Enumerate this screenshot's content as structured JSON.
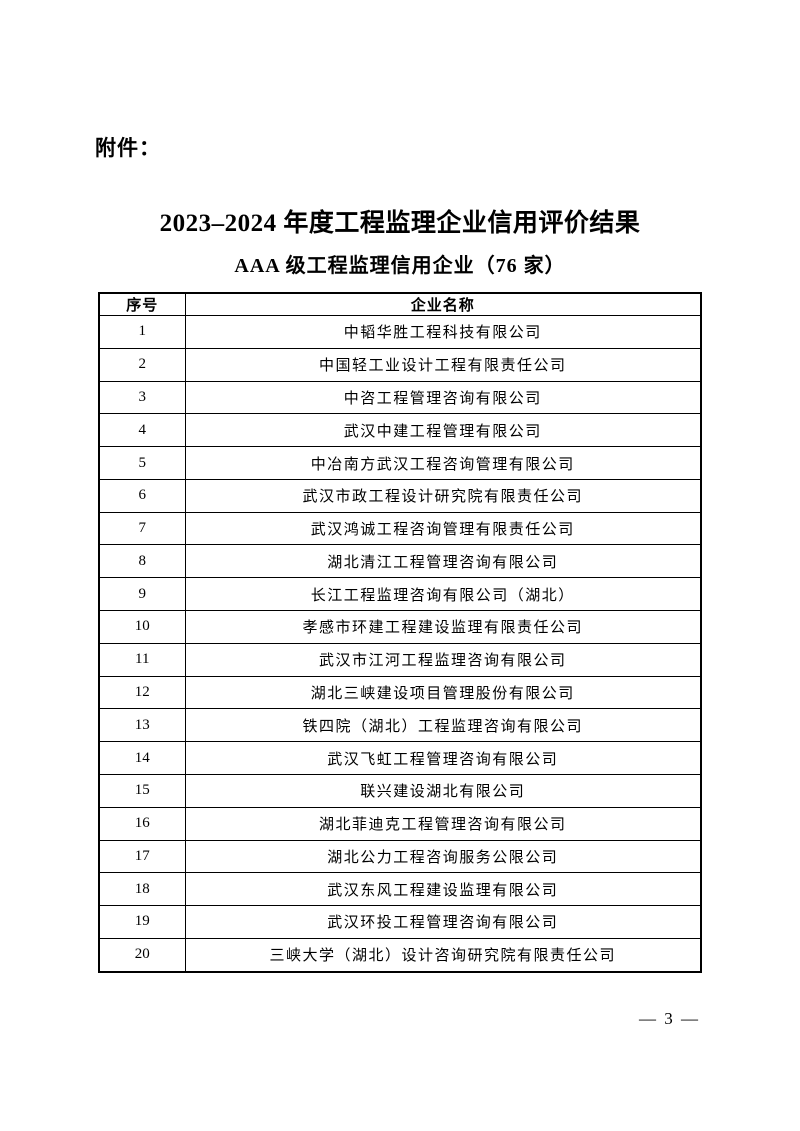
{
  "document": {
    "attachment_label": "附件：",
    "title": "2023–2024 年度工程监理企业信用评价结果",
    "subtitle": "AAA 级工程监理信用企业（76 家）",
    "page_number": "— 3 —"
  },
  "colors": {
    "text": "#000000",
    "border": "#000000",
    "background": "#ffffff"
  },
  "table": {
    "headers": [
      "序号",
      "企业名称"
    ],
    "rows": [
      {
        "no": "1",
        "name": "中韬华胜工程科技有限公司"
      },
      {
        "no": "2",
        "name": "中国轻工业设计工程有限责任公司"
      },
      {
        "no": "3",
        "name": "中咨工程管理咨询有限公司"
      },
      {
        "no": "4",
        "name": "武汉中建工程管理有限公司"
      },
      {
        "no": "5",
        "name": "中冶南方武汉工程咨询管理有限公司"
      },
      {
        "no": "6",
        "name": "武汉市政工程设计研究院有限责任公司"
      },
      {
        "no": "7",
        "name": "武汉鸿诚工程咨询管理有限责任公司"
      },
      {
        "no": "8",
        "name": "湖北清江工程管理咨询有限公司"
      },
      {
        "no": "9",
        "name": "长江工程监理咨询有限公司（湖北）"
      },
      {
        "no": "10",
        "name": "孝感市环建工程建设监理有限责任公司"
      },
      {
        "no": "11",
        "name": "武汉市江河工程监理咨询有限公司"
      },
      {
        "no": "12",
        "name": "湖北三峡建设项目管理股份有限公司"
      },
      {
        "no": "13",
        "name": "铁四院（湖北）工程监理咨询有限公司"
      },
      {
        "no": "14",
        "name": "武汉飞虹工程管理咨询有限公司"
      },
      {
        "no": "15",
        "name": "联兴建设湖北有限公司"
      },
      {
        "no": "16",
        "name": "湖北菲迪克工程管理咨询有限公司"
      },
      {
        "no": "17",
        "name": "湖北公力工程咨询服务公限公司"
      },
      {
        "no": "18",
        "name": "武汉东风工程建设监理有限公司"
      },
      {
        "no": "19",
        "name": "武汉环投工程管理咨询有限公司"
      },
      {
        "no": "20",
        "name": "三峡大学（湖北）设计咨询研究院有限责任公司"
      }
    ]
  }
}
